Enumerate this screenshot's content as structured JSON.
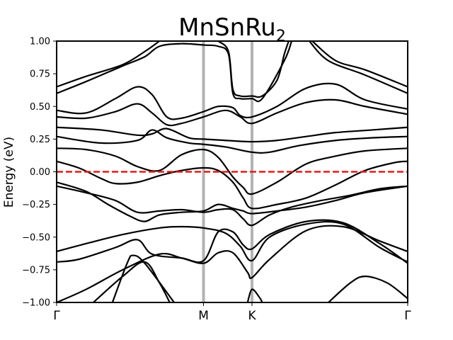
{
  "chart_data": {
    "type": "line",
    "title": "MnSnRu",
    "title_subscript": "2",
    "xlabel": "",
    "ylabel": "Energy (eV)",
    "ylim": [
      -1.0,
      1.0
    ],
    "yticks": [
      -1.0,
      -0.75,
      -0.5,
      -0.25,
      0.0,
      0.25,
      0.5,
      0.75,
      1.0
    ],
    "ytick_labels": [
      "−1.00",
      "−0.75",
      "−0.50",
      "−0.25",
      "0.00",
      "0.25",
      "0.50",
      "0.75",
      "1.00"
    ],
    "xlim": [
      0.0,
      2.39
    ],
    "kpoints": [
      {
        "label": "Γ",
        "x": 0.0
      },
      {
        "label": "M",
        "x": 1.0
      },
      {
        "label": "K",
        "x": 1.33
      },
      {
        "label": "Γ",
        "x": 2.39
      }
    ],
    "symmetry_line_color": "#b3b3b3",
    "band_color": "#000000",
    "fermi_level": {
      "y": 0.0,
      "color": "#e31a1c",
      "style": "dashed"
    },
    "grid": false,
    "series": [
      {
        "values": [
          [
            0.0,
            -1.0
          ],
          [
            0.2,
            -0.9
          ],
          [
            0.45,
            -0.75
          ],
          [
            0.7,
            -0.63
          ],
          [
            0.85,
            -0.66
          ],
          [
            1.0,
            -0.7
          ],
          [
            1.1,
            -0.62
          ],
          [
            1.2,
            -0.62
          ],
          [
            1.3,
            -0.77
          ],
          [
            1.33,
            -0.81
          ],
          [
            1.45,
            -0.67
          ],
          [
            1.7,
            -0.45
          ],
          [
            1.95,
            -0.42
          ],
          [
            2.2,
            -0.53
          ],
          [
            2.39,
            -0.61
          ]
        ]
      },
      {
        "values": [
          [
            0.0,
            -0.61
          ],
          [
            0.2,
            -0.55
          ],
          [
            0.45,
            -0.48
          ],
          [
            0.7,
            -0.43
          ],
          [
            0.85,
            -0.42
          ],
          [
            1.0,
            -0.43
          ],
          [
            1.15,
            -0.47
          ],
          [
            1.25,
            -0.57
          ],
          [
            1.33,
            -0.68
          ],
          [
            1.45,
            -0.5
          ],
          [
            1.7,
            -0.4
          ],
          [
            1.95,
            -0.4
          ],
          [
            2.2,
            -0.58
          ],
          [
            2.39,
            -0.69
          ]
        ]
      },
      {
        "values": [
          [
            0.0,
            -0.69
          ],
          [
            0.15,
            -0.67
          ],
          [
            0.4,
            -0.58
          ],
          [
            0.55,
            -0.52
          ],
          [
            0.65,
            -0.63
          ],
          [
            0.85,
            -0.66
          ],
          [
            1.0,
            -0.68
          ],
          [
            1.1,
            -0.46
          ],
          [
            1.2,
            -0.46
          ],
          [
            1.27,
            -0.56
          ],
          [
            1.33,
            -0.59
          ],
          [
            1.45,
            -0.48
          ],
          [
            1.7,
            -0.38
          ],
          [
            1.95,
            -0.39
          ],
          [
            2.2,
            -0.55
          ],
          [
            2.39,
            -0.7
          ]
        ]
      },
      {
        "values": [
          [
            0.0,
            -0.11
          ],
          [
            0.2,
            -0.16
          ],
          [
            0.4,
            -0.22
          ],
          [
            0.55,
            -0.31
          ],
          [
            0.7,
            -0.3
          ],
          [
            0.85,
            -0.29
          ],
          [
            1.0,
            -0.31
          ],
          [
            1.1,
            -0.29
          ],
          [
            1.2,
            -0.29
          ],
          [
            1.27,
            -0.36
          ],
          [
            1.33,
            -0.41
          ],
          [
            1.45,
            -0.33
          ],
          [
            1.6,
            -0.27
          ],
          [
            1.8,
            -0.22
          ],
          [
            2.0,
            -0.18
          ],
          [
            2.2,
            -0.13
          ],
          [
            2.39,
            -0.11
          ]
        ]
      },
      {
        "values": [
          [
            0.0,
            -0.08
          ],
          [
            0.2,
            -0.15
          ],
          [
            0.35,
            -0.25
          ],
          [
            0.5,
            -0.34
          ],
          [
            0.6,
            -0.38
          ],
          [
            0.7,
            -0.33
          ],
          [
            0.85,
            -0.31
          ],
          [
            1.0,
            -0.3
          ],
          [
            1.1,
            -0.25
          ],
          [
            1.2,
            -0.28
          ],
          [
            1.27,
            -0.3
          ],
          [
            1.33,
            -0.32
          ],
          [
            1.5,
            -0.3
          ],
          [
            1.7,
            -0.27
          ],
          [
            1.9,
            -0.22
          ],
          [
            2.1,
            -0.16
          ],
          [
            2.39,
            -0.11
          ]
        ]
      },
      {
        "values": [
          [
            0.0,
            0.08
          ],
          [
            0.15,
            0.03
          ],
          [
            0.3,
            -0.05
          ],
          [
            0.4,
            -0.09
          ],
          [
            0.55,
            -0.08
          ],
          [
            0.7,
            -0.03
          ],
          [
            0.85,
            0.01
          ],
          [
            1.0,
            0.03
          ],
          [
            1.1,
            0.01
          ],
          [
            1.2,
            -0.08
          ],
          [
            1.27,
            -0.2
          ],
          [
            1.33,
            -0.28
          ],
          [
            1.5,
            -0.25
          ],
          [
            1.7,
            -0.2
          ],
          [
            1.9,
            -0.1
          ],
          [
            2.1,
            0.01
          ],
          [
            2.3,
            0.07
          ],
          [
            2.39,
            0.08
          ]
        ]
      },
      {
        "values": [
          [
            0.0,
            0.18
          ],
          [
            0.2,
            0.17
          ],
          [
            0.4,
            0.12
          ],
          [
            0.55,
            0.04
          ],
          [
            0.7,
            0.01
          ],
          [
            0.85,
            0.13
          ],
          [
            1.0,
            0.17
          ],
          [
            1.1,
            0.11
          ],
          [
            1.2,
            -0.04
          ],
          [
            1.27,
            -0.12
          ],
          [
            1.33,
            -0.17
          ],
          [
            1.5,
            -0.08
          ],
          [
            1.7,
            0.06
          ],
          [
            1.9,
            0.12
          ],
          [
            2.1,
            0.16
          ],
          [
            2.39,
            0.18
          ]
        ]
      },
      {
        "values": [
          [
            0.0,
            0.27
          ],
          [
            0.3,
            0.22
          ],
          [
            0.55,
            0.24
          ],
          [
            0.65,
            0.32
          ],
          [
            0.75,
            0.26
          ],
          [
            0.9,
            0.22
          ],
          [
            1.0,
            0.21
          ],
          [
            1.15,
            0.19
          ],
          [
            1.33,
            0.15
          ],
          [
            1.45,
            0.15
          ],
          [
            1.65,
            0.2
          ],
          [
            1.9,
            0.24
          ],
          [
            2.15,
            0.26
          ],
          [
            2.39,
            0.27
          ]
        ]
      },
      {
        "values": [
          [
            0.0,
            0.34
          ],
          [
            0.3,
            0.32
          ],
          [
            0.55,
            0.28
          ],
          [
            0.65,
            0.29
          ],
          [
            0.75,
            0.33
          ],
          [
            0.9,
            0.26
          ],
          [
            1.0,
            0.25
          ],
          [
            1.15,
            0.24
          ],
          [
            1.33,
            0.23
          ],
          [
            1.5,
            0.24
          ],
          [
            1.7,
            0.27
          ],
          [
            1.9,
            0.3
          ],
          [
            2.15,
            0.32
          ],
          [
            2.39,
            0.34
          ]
        ]
      },
      {
        "values": [
          [
            0.0,
            0.42
          ],
          [
            0.2,
            0.41
          ],
          [
            0.4,
            0.46
          ],
          [
            0.55,
            0.52
          ],
          [
            0.65,
            0.45
          ],
          [
            0.75,
            0.36
          ],
          [
            0.85,
            0.37
          ],
          [
            1.0,
            0.42
          ],
          [
            1.15,
            0.47
          ],
          [
            1.25,
            0.42
          ],
          [
            1.33,
            0.37
          ],
          [
            1.5,
            0.45
          ],
          [
            1.7,
            0.53
          ],
          [
            1.9,
            0.55
          ],
          [
            2.1,
            0.5
          ],
          [
            2.39,
            0.44
          ]
        ]
      },
      {
        "values": [
          [
            0.0,
            0.47
          ],
          [
            0.2,
            0.45
          ],
          [
            0.4,
            0.56
          ],
          [
            0.55,
            0.65
          ],
          [
            0.65,
            0.59
          ],
          [
            0.75,
            0.42
          ],
          [
            0.85,
            0.41
          ],
          [
            1.0,
            0.46
          ],
          [
            1.1,
            0.5
          ],
          [
            1.2,
            0.49
          ],
          [
            1.25,
            0.43
          ],
          [
            1.33,
            0.42
          ],
          [
            1.5,
            0.5
          ],
          [
            1.7,
            0.64
          ],
          [
            1.9,
            0.67
          ],
          [
            2.1,
            0.55
          ],
          [
            2.39,
            0.48
          ]
        ]
      },
      {
        "values": [
          [
            0.0,
            0.6
          ],
          [
            0.2,
            0.69
          ],
          [
            0.45,
            0.81
          ],
          [
            0.6,
            0.88
          ],
          [
            0.7,
            0.96
          ],
          [
            0.85,
            0.98
          ],
          [
            1.0,
            0.97
          ],
          [
            1.1,
            0.96
          ],
          [
            1.17,
            0.9
          ],
          [
            1.2,
            0.6
          ],
          [
            1.25,
            0.56
          ],
          [
            1.33,
            0.56
          ],
          [
            1.4,
            0.56
          ],
          [
            1.55,
            0.85
          ],
          [
            1.6,
            1.0
          ]
        ]
      },
      {
        "values": [
          [
            0.0,
            0.65
          ],
          [
            0.2,
            0.73
          ],
          [
            0.45,
            0.82
          ],
          [
            0.6,
            0.92
          ],
          [
            0.7,
            1.0
          ]
        ]
      },
      {
        "values": [
          [
            1.1,
            1.0
          ],
          [
            1.17,
            0.92
          ],
          [
            1.2,
            0.63
          ],
          [
            1.25,
            0.58
          ],
          [
            1.33,
            0.58
          ],
          [
            1.4,
            0.58
          ],
          [
            1.5,
            0.7
          ],
          [
            1.55,
            0.9
          ],
          [
            1.58,
            1.0
          ]
        ]
      },
      {
        "values": [
          [
            1.74,
            1.0
          ],
          [
            1.9,
            0.85
          ],
          [
            2.1,
            0.78
          ],
          [
            2.39,
            0.65
          ]
        ]
      },
      {
        "values": [
          [
            1.72,
            1.0
          ],
          [
            1.85,
            0.85
          ],
          [
            2.1,
            0.74
          ],
          [
            2.39,
            0.6
          ]
        ]
      },
      {
        "values": [
          [
            0.25,
            -1.0
          ],
          [
            0.45,
            -0.8
          ],
          [
            0.6,
            -0.69
          ],
          [
            0.7,
            -0.85
          ],
          [
            0.77,
            -1.0
          ]
        ]
      },
      {
        "values": [
          [
            0.38,
            -1.0
          ],
          [
            0.48,
            -0.7
          ],
          [
            0.52,
            -0.64
          ],
          [
            0.6,
            -0.7
          ],
          [
            0.8,
            -1.0
          ]
        ]
      },
      {
        "values": [
          [
            1.3,
            -1.0
          ],
          [
            1.33,
            -0.9
          ],
          [
            1.38,
            -0.96
          ],
          [
            1.4,
            -1.0
          ]
        ]
      },
      {
        "values": [
          [
            1.85,
            -1.0
          ],
          [
            2.0,
            -0.85
          ],
          [
            2.1,
            -0.8
          ],
          [
            2.25,
            -0.85
          ],
          [
            2.39,
            -0.97
          ]
        ]
      }
    ]
  }
}
